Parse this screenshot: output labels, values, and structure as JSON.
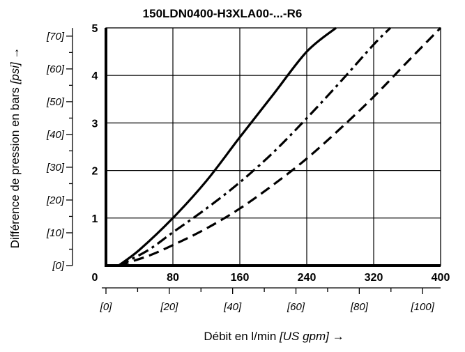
{
  "chart_data": {
    "type": "line",
    "title": "150LDN0400-H3XLA00-...-R6",
    "xlabel": "Débit en l/min",
    "xlabel_unit": "[US gpm] →",
    "ylabel": "Différence de pression en bars",
    "ylabel_unit": "[psi] →",
    "xlim": [
      0,
      400
    ],
    "ylim": [
      0,
      5
    ],
    "x_ticks": [
      "0",
      "80",
      "160",
      "240",
      "320",
      "400"
    ],
    "y_ticks": [
      "1",
      "2",
      "3",
      "4",
      "5"
    ],
    "x_secondary_ticks": [
      "[0]",
      "[20]",
      "[40]",
      "[60]",
      "[80]",
      "[100]"
    ],
    "y_secondary_ticks": [
      "[0]",
      "[10]",
      "[20]",
      "[30]",
      "[40]",
      "[50]",
      "[60]",
      "[70]"
    ],
    "grid": true,
    "series": [
      {
        "style": "solid",
        "x": [
          15,
          40,
          80,
          120,
          160,
          200,
          240,
          275
        ],
        "y": [
          0.0,
          0.33,
          1.0,
          1.78,
          2.7,
          3.6,
          4.5,
          5.0
        ]
      },
      {
        "style": "dash-dot",
        "x": [
          15,
          50,
          80,
          120,
          160,
          200,
          240,
          280,
          320,
          340
        ],
        "y": [
          0.0,
          0.32,
          0.7,
          1.2,
          1.75,
          2.38,
          3.1,
          3.86,
          4.65,
          5.0
        ]
      },
      {
        "style": "dashed",
        "x": [
          15,
          50,
          80,
          120,
          160,
          200,
          240,
          280,
          320,
          360,
          400
        ],
        "y": [
          0.0,
          0.2,
          0.43,
          0.78,
          1.2,
          1.7,
          2.25,
          2.88,
          3.55,
          4.28,
          5.0
        ]
      }
    ]
  }
}
